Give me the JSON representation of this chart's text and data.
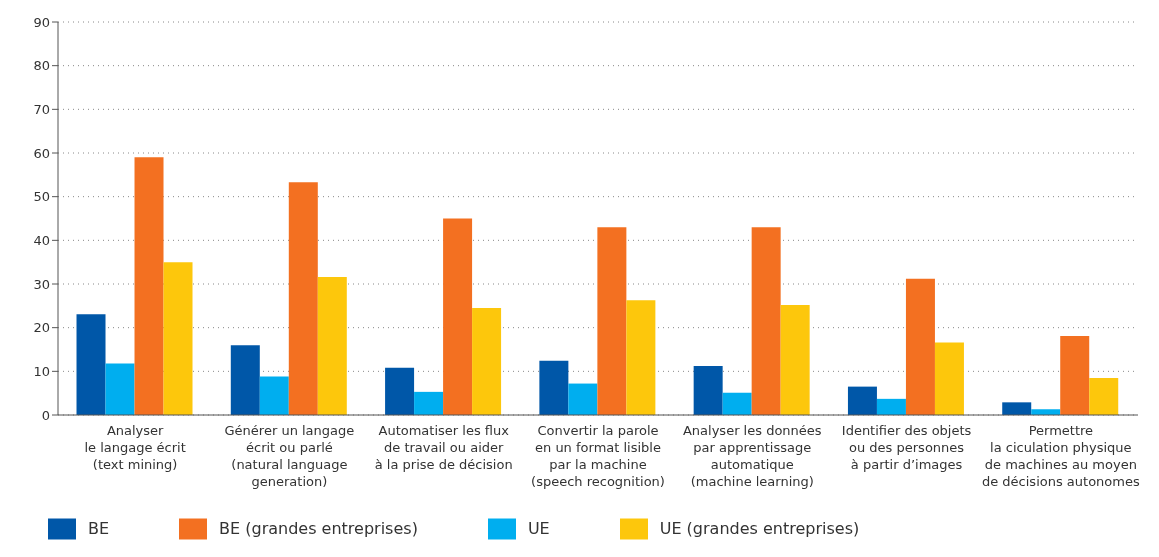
{
  "chart_data": {
    "type": "bar",
    "categories": [
      "Analyser\nle langage écrit\n(text mining)",
      "Générer un langage\nécrit ou parlé\n(natural language\ngeneration)",
      "Automatiser les flux\nde travail ou aider\nà la prise de décision",
      "Convertir la parole\nen un format lisible\npar la machine\n(speech recognition)",
      "Analyser les données\npar apprentissage\nautomatique\n(machine learning)",
      "Identifier des objets\nou des personnes\nà partir d’images",
      "Permettre\nla ciculation physique\nde machines au moyen\nde décisions autonomes"
    ],
    "series": [
      {
        "name": "BE",
        "color": "#0057a8",
        "values": [
          23.1,
          16,
          10.8,
          12.4,
          11.2,
          6.5,
          2.9
        ]
      },
      {
        "name": "UE",
        "color": "#00aeef",
        "values": [
          11.8,
          8.8,
          5.3,
          7.2,
          5.1,
          3.7,
          1.3
        ]
      },
      {
        "name": "BE (grandes entreprises)",
        "color": "#f37021",
        "values": [
          59,
          53.3,
          45,
          43,
          43,
          31.2,
          18.1
        ]
      },
      {
        "name": "UE (grandes entreprises)",
        "color": "#fdc70c",
        "values": [
          35,
          31.6,
          24.5,
          26.3,
          25.2,
          16.6,
          8.5
        ]
      }
    ],
    "ylim": [
      0,
      90
    ],
    "yticks": [
      0,
      10,
      20,
      30,
      40,
      50,
      60,
      70,
      80,
      90
    ],
    "grid": "y",
    "legend": "bottom"
  }
}
